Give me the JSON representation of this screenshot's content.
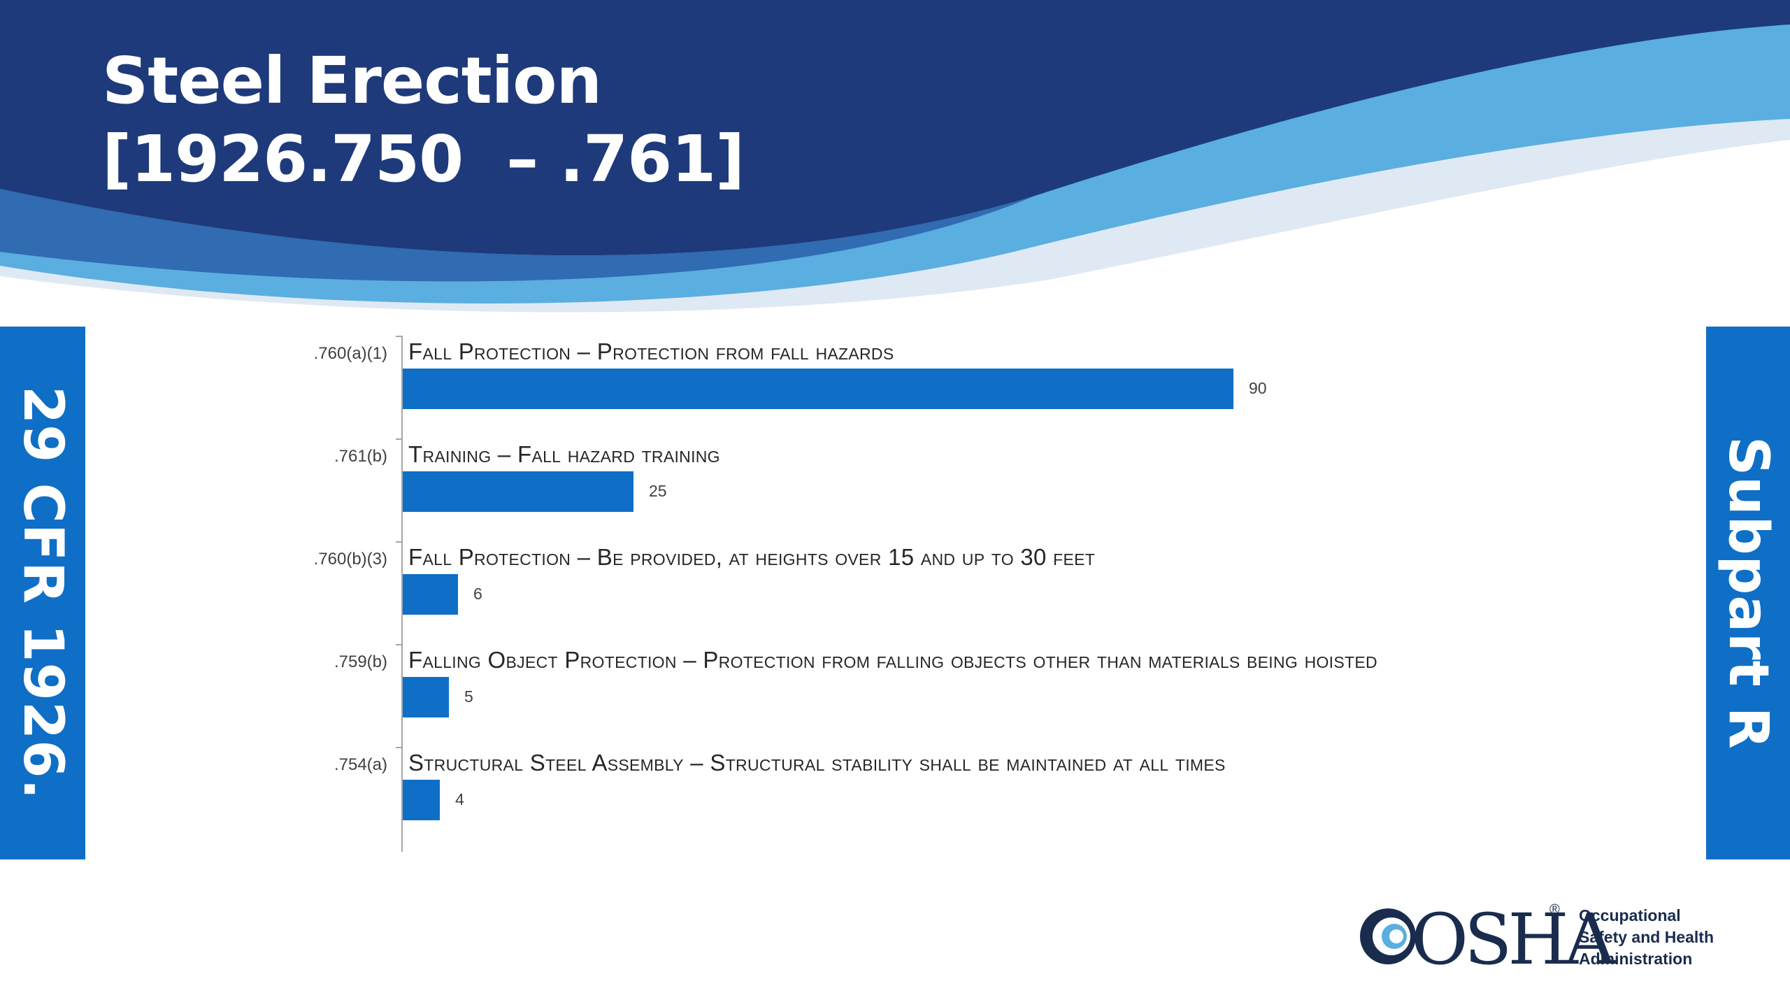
{
  "slide": {
    "title_line1": "Steel Erection",
    "title_line2": "[1926.750  – .761]",
    "left_band_text": "29 CFR 1926.",
    "right_band_text": "Subpart R"
  },
  "colors": {
    "navy": "#1e3a7b",
    "mid_blue": "#5aaee0",
    "light_blue": "#d6e3f1",
    "bar_blue": "#0f6fc6",
    "band_blue": "#0f6fc6"
  },
  "logo": {
    "word": "OSHA",
    "registered": "®",
    "tagline": [
      "Occupational",
      "Safety and Health",
      "Administration"
    ]
  },
  "chart_data": {
    "type": "bar",
    "orientation": "horizontal",
    "categories": [
      ".760(a)(1)",
      ".761(b)",
      ".760(b)(3)",
      ".759(b)",
      ".754(a)"
    ],
    "descriptions": [
      "Fall Protection – Protection from fall hazards",
      "Training – Fall hazard training",
      "Fall Protection – Be provided, at heights over 15 and up to 30 feet",
      "Falling Object Protection – Protection from falling objects other than materials being hoisted",
      "Structural Steel Assembly – Structural stability shall be maintained at all times"
    ],
    "values": [
      90,
      25,
      6,
      5,
      4
    ],
    "xlim": [
      0,
      100
    ],
    "grid": false,
    "legend": "none"
  }
}
